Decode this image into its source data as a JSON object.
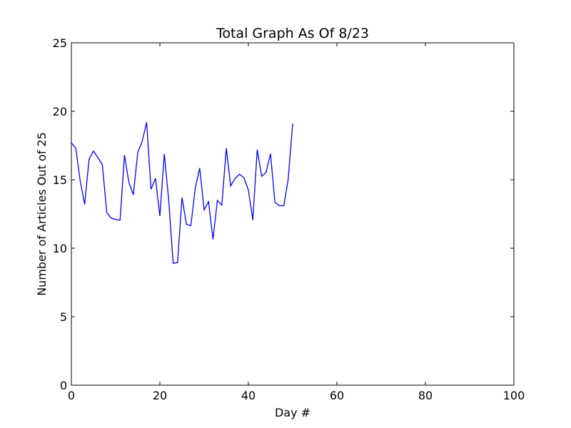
{
  "chart_data": {
    "type": "line",
    "title": "Total Graph As Of 8/23",
    "xlabel": "Day #",
    "ylabel": "Number of Articles Out of 25",
    "xlim": [
      0,
      100
    ],
    "ylim": [
      0,
      25
    ],
    "xticks": [
      0,
      20,
      40,
      60,
      80,
      100
    ],
    "yticks": [
      0,
      5,
      10,
      15,
      20,
      25
    ],
    "grid": false,
    "line_color": "#0000ff",
    "series": [
      {
        "x": [
          0,
          1,
          2,
          3,
          4,
          5,
          6,
          7,
          8,
          9,
          10,
          11,
          12,
          13,
          14,
          15,
          16,
          17,
          18,
          19,
          20,
          21,
          22,
          23,
          24,
          25,
          26,
          27,
          28,
          29,
          30,
          31,
          32,
          33,
          34,
          35,
          36,
          37,
          38,
          39,
          40,
          41,
          42,
          43,
          44,
          45,
          46,
          47,
          48,
          49,
          50
        ],
        "values": [
          17.7,
          17.3,
          14.9,
          13.2,
          16.5,
          17.1,
          16.6,
          16.1,
          12.6,
          12.2,
          12.1,
          12.05,
          16.8,
          14.8,
          13.9,
          17.0,
          17.8,
          19.2,
          14.3,
          15.1,
          12.35,
          16.9,
          13.5,
          8.9,
          8.95,
          13.7,
          11.75,
          11.65,
          14.4,
          15.85,
          12.8,
          13.4,
          10.65,
          13.5,
          13.15,
          17.3,
          14.55,
          15.1,
          15.4,
          15.15,
          14.25,
          12.05,
          17.2,
          15.25,
          15.55,
          16.9,
          13.35,
          13.1,
          13.1,
          15.05,
          19.1
        ]
      }
    ]
  }
}
